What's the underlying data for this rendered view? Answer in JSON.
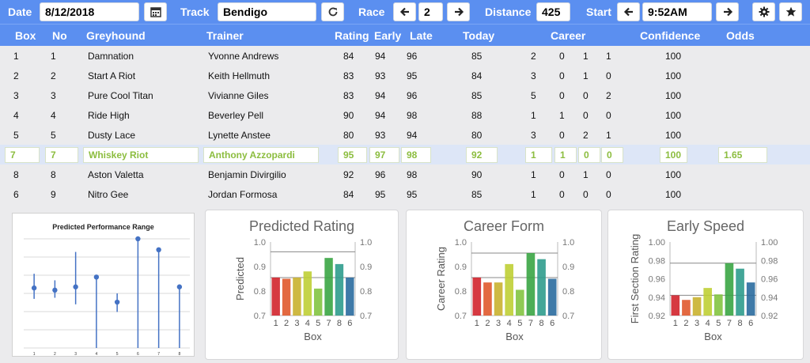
{
  "toolbar": {
    "date_label": "Date",
    "date_value": "8/12/2018",
    "track_label": "Track",
    "track_value": "Bendigo",
    "race_label": "Race",
    "race_value": "2",
    "distance_label": "Distance",
    "distance_value": "425",
    "start_label": "Start",
    "start_value": "9:52AM"
  },
  "header": {
    "box": "Box",
    "no": "No",
    "greyhound": "Greyhound",
    "trainer": "Trainer",
    "rating": "Rating",
    "early": "Early",
    "late": "Late",
    "today": "Today",
    "career": "Career",
    "confidence": "Confidence",
    "odds": "Odds"
  },
  "rows": [
    {
      "box": "1",
      "no": "1",
      "name": "Damnation",
      "trainer": "Yvonne Andrews",
      "rating": "84",
      "early": "94",
      "late": "96",
      "today": "85",
      "c1": "2",
      "c2": "0",
      "c3": "1",
      "c4": "1",
      "confidence": "100",
      "odds": ""
    },
    {
      "box": "2",
      "no": "2",
      "name": "Start A Riot",
      "trainer": "Keith Hellmuth",
      "rating": "83",
      "early": "93",
      "late": "95",
      "today": "84",
      "c1": "3",
      "c2": "0",
      "c3": "1",
      "c4": "0",
      "confidence": "100",
      "odds": ""
    },
    {
      "box": "3",
      "no": "3",
      "name": "Pure Cool Titan",
      "trainer": "Vivianne Giles",
      "rating": "83",
      "early": "94",
      "late": "96",
      "today": "85",
      "c1": "5",
      "c2": "0",
      "c3": "0",
      "c4": "2",
      "confidence": "100",
      "odds": ""
    },
    {
      "box": "4",
      "no": "4",
      "name": "Ride High",
      "trainer": "Beverley Pell",
      "rating": "90",
      "early": "94",
      "late": "98",
      "today": "88",
      "c1": "1",
      "c2": "1",
      "c3": "0",
      "c4": "0",
      "confidence": "100",
      "odds": ""
    },
    {
      "box": "5",
      "no": "5",
      "name": "Dusty Lace",
      "trainer": "Lynette Anstee",
      "rating": "80",
      "early": "93",
      "late": "94",
      "today": "80",
      "c1": "3",
      "c2": "0",
      "c3": "2",
      "c4": "1",
      "confidence": "100",
      "odds": ""
    },
    {
      "box": "7",
      "no": "7",
      "name": "Whiskey Riot",
      "trainer": "Anthony Azzopardi",
      "rating": "95",
      "early": "97",
      "late": "98",
      "today": "92",
      "c1": "1",
      "c2": "1",
      "c3": "0",
      "c4": "0",
      "confidence": "100",
      "odds": "1.65"
    },
    {
      "box": "8",
      "no": "8",
      "name": "Aston Valetta",
      "trainer": "Benjamin Divirgilio",
      "rating": "92",
      "early": "96",
      "late": "98",
      "today": "90",
      "c1": "1",
      "c2": "0",
      "c3": "1",
      "c4": "0",
      "confidence": "100",
      "odds": ""
    },
    {
      "box": "6",
      "no": "9",
      "name": "Nitro Gee",
      "trainer": "Jordan Formosa",
      "rating": "84",
      "early": "95",
      "late": "95",
      "today": "85",
      "c1": "1",
      "c2": "0",
      "c3": "0",
      "c4": "0",
      "confidence": "100",
      "odds": ""
    }
  ],
  "highlight_color": "#8cbd3f",
  "accent_color": "#5b8ff0",
  "icons": [
    "calendar-icon",
    "refresh-icon",
    "arrow-left-icon",
    "arrow-right-icon",
    "gear-icon",
    "star-icon"
  ],
  "chart_data": [
    {
      "type": "scatter",
      "title": "Predicted Performance Range",
      "categories": [
        "1",
        "2",
        "3",
        "4",
        "5",
        "6",
        "7",
        "8"
      ],
      "values": [
        0.55,
        0.53,
        0.56,
        0.65,
        0.42,
        1.0,
        0.9,
        0.56
      ],
      "low": [
        0.45,
        0.46,
        0.4,
        null,
        0.33,
        null,
        null,
        null
      ],
      "high": [
        0.68,
        0.62,
        0.88,
        null,
        0.5,
        null,
        null,
        null
      ],
      "stem": [
        false,
        false,
        false,
        true,
        false,
        true,
        true,
        true
      ],
      "grid": true
    },
    {
      "type": "bar",
      "title": "Predicted Rating",
      "categories": [
        "1",
        "2",
        "3",
        "4",
        "5",
        "7",
        "8",
        "6"
      ],
      "values": [
        0.855,
        0.85,
        0.855,
        0.88,
        0.81,
        0.935,
        0.91,
        0.855
      ],
      "ylabel": "Predicted",
      "xlabel": "Box",
      "ylim": [
        0.7,
        1.0
      ],
      "yticks": [
        "1.0",
        "0.9",
        "0.8",
        "0.7"
      ],
      "ref_lines": [
        0.96,
        0.855
      ]
    },
    {
      "type": "bar",
      "title": "Career Form",
      "categories": [
        "1",
        "2",
        "3",
        "4",
        "5",
        "7",
        "8",
        "6"
      ],
      "values": [
        0.855,
        0.835,
        0.835,
        0.91,
        0.805,
        0.955,
        0.93,
        0.85
      ],
      "ylabel": "Career Rating",
      "xlabel": "Box",
      "ylim": [
        0.7,
        1.0
      ],
      "yticks": [
        "1.0",
        "0.9",
        "0.8",
        "0.7"
      ],
      "ref_lines": [
        0.955,
        0.855
      ]
    },
    {
      "type": "bar",
      "title": "Early Speed",
      "categories": [
        "1",
        "2",
        "3",
        "4",
        "5",
        "7",
        "8",
        "6"
      ],
      "values": [
        0.942,
        0.937,
        0.94,
        0.95,
        0.943,
        0.977,
        0.971,
        0.956
      ],
      "ylabel": "First Section Rating",
      "xlabel": "Box",
      "ylim": [
        0.92,
        1.0
      ],
      "yticks": [
        "1.00",
        "0.98",
        "0.96",
        "0.94",
        "0.92"
      ],
      "ref_lines": [
        0.977,
        0.942
      ]
    }
  ]
}
